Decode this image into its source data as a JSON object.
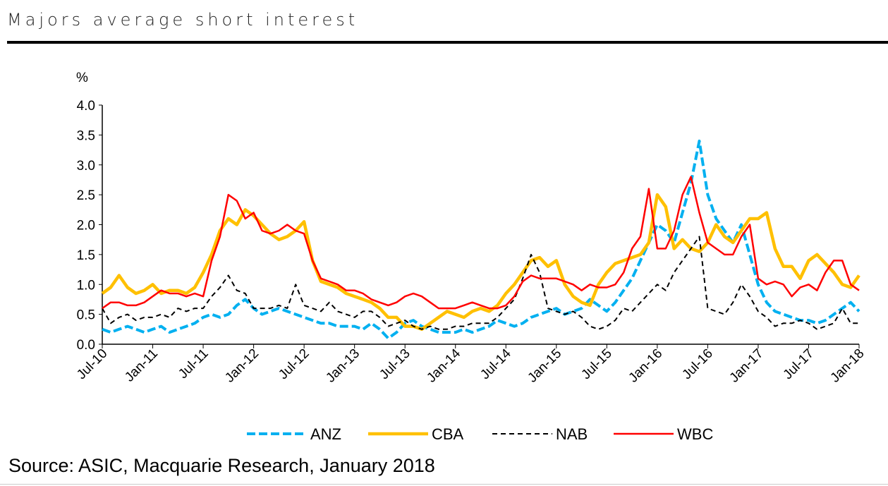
{
  "title": "Majors average short interest",
  "source": "Source: ASIC, Macquarie Research, January 2018",
  "chart_data": {
    "type": "line",
    "title": "Majors average short interest",
    "ylabel": "%",
    "ylim": [
      0,
      4
    ],
    "yticks": [
      "0.0",
      "0.5",
      "1.0",
      "1.5",
      "2.0",
      "2.5",
      "3.0",
      "3.5",
      "4.0"
    ],
    "xticks": [
      "Jul-10",
      "Jan-11",
      "Jul-11",
      "Jan-12",
      "Jul-12",
      "Jan-13",
      "Jul-13",
      "Jan-14",
      "Jul-14",
      "Jan-15",
      "Jul-15",
      "Jan-16",
      "Jul-16",
      "Jan-17",
      "Jul-17",
      "Jan-18"
    ],
    "xlim": [
      "2010-07",
      "2018-01"
    ],
    "grid": false,
    "legend": "bottom",
    "x": [
      "2010-07",
      "2010-08",
      "2010-09",
      "2010-10",
      "2010-11",
      "2010-12",
      "2011-01",
      "2011-02",
      "2011-03",
      "2011-04",
      "2011-05",
      "2011-06",
      "2011-07",
      "2011-08",
      "2011-09",
      "2011-10",
      "2011-11",
      "2011-12",
      "2012-01",
      "2012-02",
      "2012-03",
      "2012-04",
      "2012-05",
      "2012-06",
      "2012-07",
      "2012-08",
      "2012-09",
      "2012-10",
      "2012-11",
      "2012-12",
      "2013-01",
      "2013-02",
      "2013-03",
      "2013-04",
      "2013-05",
      "2013-06",
      "2013-07",
      "2013-08",
      "2013-09",
      "2013-10",
      "2013-11",
      "2013-12",
      "2014-01",
      "2014-02",
      "2014-03",
      "2014-04",
      "2014-05",
      "2014-06",
      "2014-07",
      "2014-08",
      "2014-09",
      "2014-10",
      "2014-11",
      "2014-12",
      "2015-01",
      "2015-02",
      "2015-03",
      "2015-04",
      "2015-05",
      "2015-06",
      "2015-07",
      "2015-08",
      "2015-09",
      "2015-10",
      "2015-11",
      "2015-12",
      "2016-01",
      "2016-02",
      "2016-03",
      "2016-04",
      "2016-05",
      "2016-06",
      "2016-07",
      "2016-08",
      "2016-09",
      "2016-10",
      "2016-11",
      "2016-12",
      "2017-01",
      "2017-02",
      "2017-03",
      "2017-04",
      "2017-05",
      "2017-06",
      "2017-07",
      "2017-08",
      "2017-09",
      "2017-10",
      "2017-11",
      "2017-12",
      "2018-01"
    ],
    "series": [
      {
        "name": "ANZ",
        "color": "#00B0F0",
        "style": "dashed",
        "values": [
          0.25,
          0.2,
          0.25,
          0.3,
          0.25,
          0.2,
          0.25,
          0.3,
          0.2,
          0.25,
          0.3,
          0.35,
          0.45,
          0.5,
          0.45,
          0.5,
          0.65,
          0.75,
          0.6,
          0.5,
          0.55,
          0.6,
          0.55,
          0.5,
          0.45,
          0.4,
          0.35,
          0.35,
          0.3,
          0.3,
          0.3,
          0.25,
          0.35,
          0.25,
          0.1,
          0.2,
          0.35,
          0.4,
          0.3,
          0.25,
          0.2,
          0.2,
          0.2,
          0.25,
          0.2,
          0.25,
          0.3,
          0.4,
          0.35,
          0.3,
          0.35,
          0.45,
          0.5,
          0.55,
          0.6,
          0.5,
          0.55,
          0.6,
          0.75,
          0.65,
          0.55,
          0.7,
          0.9,
          1.1,
          1.4,
          1.7,
          2.0,
          1.9,
          1.7,
          2.2,
          2.7,
          3.4,
          2.5,
          2.1,
          1.9,
          1.7,
          2.0,
          1.5,
          1.0,
          0.7,
          0.55,
          0.5,
          0.45,
          0.4,
          0.4,
          0.35,
          0.4,
          0.5,
          0.6,
          0.7,
          0.55
        ]
      },
      {
        "name": "CBA",
        "color": "#FFC000",
        "style": "solid-thick",
        "values": [
          0.85,
          0.95,
          1.15,
          0.95,
          0.85,
          0.9,
          1.0,
          0.85,
          0.9,
          0.9,
          0.85,
          0.95,
          1.2,
          1.5,
          1.9,
          2.1,
          2.0,
          2.25,
          2.15,
          2.0,
          1.85,
          1.75,
          1.8,
          1.9,
          2.05,
          1.4,
          1.05,
          1.0,
          0.95,
          0.85,
          0.8,
          0.75,
          0.7,
          0.6,
          0.45,
          0.45,
          0.3,
          0.3,
          0.25,
          0.35,
          0.45,
          0.55,
          0.5,
          0.45,
          0.55,
          0.6,
          0.55,
          0.65,
          0.85,
          1.0,
          1.2,
          1.4,
          1.45,
          1.3,
          1.4,
          1.0,
          0.8,
          0.7,
          0.65,
          1.0,
          1.2,
          1.35,
          1.4,
          1.45,
          1.5,
          1.7,
          2.5,
          2.3,
          1.6,
          1.75,
          1.6,
          1.55,
          1.7,
          2.0,
          1.8,
          1.7,
          1.9,
          2.1,
          2.1,
          2.2,
          1.6,
          1.3,
          1.3,
          1.1,
          1.4,
          1.5,
          1.35,
          1.2,
          1.0,
          0.95,
          1.15
        ]
      },
      {
        "name": "NAB",
        "color": "#000000",
        "style": "dashed-thin",
        "values": [
          0.6,
          0.35,
          0.45,
          0.5,
          0.4,
          0.45,
          0.45,
          0.5,
          0.45,
          0.6,
          0.55,
          0.6,
          0.6,
          0.8,
          0.95,
          1.15,
          0.9,
          0.85,
          0.6,
          0.6,
          0.6,
          0.65,
          0.6,
          1.0,
          0.65,
          0.6,
          0.55,
          0.7,
          0.55,
          0.5,
          0.45,
          0.55,
          0.55,
          0.45,
          0.3,
          0.35,
          0.4,
          0.3,
          0.25,
          0.3,
          0.25,
          0.25,
          0.3,
          0.3,
          0.35,
          0.35,
          0.35,
          0.45,
          0.6,
          0.75,
          1.1,
          1.5,
          1.2,
          0.6,
          0.55,
          0.5,
          0.55,
          0.45,
          0.3,
          0.25,
          0.3,
          0.4,
          0.6,
          0.55,
          0.7,
          0.85,
          1.0,
          0.9,
          1.2,
          1.4,
          1.6,
          1.8,
          0.6,
          0.55,
          0.5,
          0.7,
          1.0,
          0.8,
          0.55,
          0.45,
          0.3,
          0.35,
          0.35,
          0.4,
          0.35,
          0.25,
          0.3,
          0.35,
          0.6,
          0.35,
          0.35
        ]
      },
      {
        "name": "WBC",
        "color": "#FF0000",
        "style": "solid",
        "values": [
          0.6,
          0.7,
          0.7,
          0.65,
          0.65,
          0.7,
          0.8,
          0.9,
          0.85,
          0.85,
          0.8,
          0.85,
          0.8,
          1.4,
          1.8,
          2.5,
          2.4,
          2.1,
          2.2,
          1.9,
          1.85,
          1.9,
          2.0,
          1.9,
          1.85,
          1.4,
          1.1,
          1.05,
          1.0,
          0.9,
          0.9,
          0.85,
          0.75,
          0.7,
          0.65,
          0.7,
          0.8,
          0.85,
          0.8,
          0.7,
          0.6,
          0.6,
          0.6,
          0.65,
          0.7,
          0.65,
          0.6,
          0.6,
          0.65,
          0.8,
          1.05,
          1.15,
          1.1,
          1.1,
          1.1,
          1.05,
          1.0,
          0.9,
          1.0,
          0.95,
          0.95,
          1.0,
          1.2,
          1.6,
          1.8,
          2.6,
          1.6,
          1.6,
          1.9,
          2.5,
          2.8,
          2.2,
          1.7,
          1.6,
          1.5,
          1.5,
          1.8,
          2.0,
          1.1,
          1.0,
          1.05,
          1.0,
          0.8,
          0.95,
          1.0,
          0.9,
          1.2,
          1.4,
          1.4,
          1.0,
          0.9
        ]
      }
    ]
  }
}
